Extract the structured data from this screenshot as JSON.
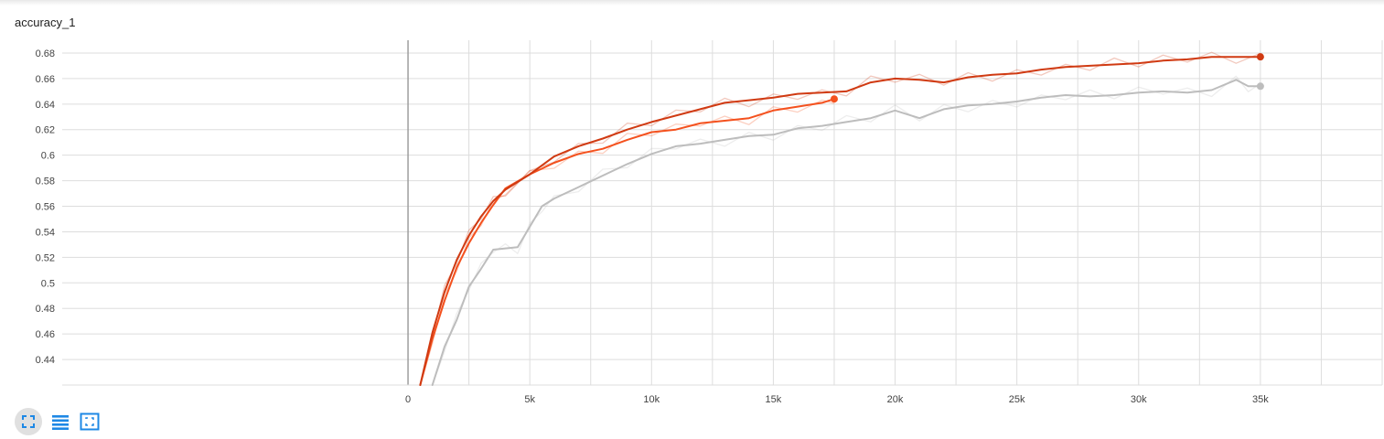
{
  "card": {
    "title": "accuracy_1"
  },
  "toolbar": {
    "items": [
      {
        "name": "fullscreen-icon",
        "active": true
      },
      {
        "name": "data-table-icon",
        "active": false
      },
      {
        "name": "fit-domain-icon",
        "active": false
      }
    ]
  },
  "colors": {
    "accent": "#1e88e5",
    "grid": "#dddddd",
    "axis": "#9e9e9e"
  },
  "chart_data": {
    "type": "line",
    "title": "accuracy_1",
    "xlabel": "",
    "ylabel": "",
    "xlim": [
      -14200,
      40000
    ],
    "ylim": [
      0.42,
      0.69
    ],
    "x_ticks": [
      0,
      5000,
      10000,
      15000,
      20000,
      25000,
      30000,
      35000
    ],
    "x_tick_labels": [
      "0",
      "5k",
      "10k",
      "15k",
      "20k",
      "25k",
      "30k",
      "35k"
    ],
    "y_ticks": [
      0.44,
      0.46,
      0.48,
      0.5,
      0.52,
      0.54,
      0.56,
      0.58,
      0.6,
      0.62,
      0.64,
      0.66,
      0.68
    ],
    "y_tick_labels": [
      "0.44",
      "0.46",
      "0.48",
      "0.5",
      "0.52",
      "0.54",
      "0.56",
      "0.58",
      "0.6",
      "0.62",
      "0.64",
      "0.66",
      "0.68"
    ],
    "grid": true,
    "legend": "none",
    "series": [
      {
        "color": "#bdbdbd",
        "end_marker": true,
        "x": [
          1000,
          1500,
          2000,
          2500,
          3000,
          3500,
          4000,
          4500,
          5000,
          5500,
          6000,
          7000,
          8000,
          9000,
          10000,
          11000,
          12000,
          13000,
          14000,
          15000,
          16000,
          17000,
          18000,
          19000,
          20000,
          21000,
          22000,
          23000,
          24000,
          25000,
          26000,
          27000,
          28000,
          29000,
          30000,
          31000,
          32000,
          33000,
          34000,
          34500,
          35000
        ],
        "values": [
          0.42,
          0.45,
          0.471,
          0.497,
          0.511,
          0.526,
          0.527,
          0.528,
          0.544,
          0.56,
          0.566,
          0.575,
          0.584,
          0.593,
          0.601,
          0.607,
          0.609,
          0.612,
          0.615,
          0.616,
          0.621,
          0.623,
          0.626,
          0.629,
          0.635,
          0.629,
          0.636,
          0.639,
          0.64,
          0.642,
          0.645,
          0.647,
          0.646,
          0.647,
          0.649,
          0.65,
          0.649,
          0.651,
          0.659,
          0.654,
          0.654
        ]
      },
      {
        "color": "#f4511e",
        "end_marker": true,
        "x": [
          500,
          1000,
          1500,
          2000,
          2500,
          3000,
          3500,
          4000,
          5000,
          6000,
          7000,
          8000,
          9000,
          10000,
          11000,
          12000,
          13000,
          14000,
          15000,
          16000,
          17000,
          17500
        ],
        "values": [
          0.42,
          0.456,
          0.486,
          0.512,
          0.531,
          0.547,
          0.561,
          0.574,
          0.585,
          0.594,
          0.601,
          0.605,
          0.612,
          0.618,
          0.62,
          0.625,
          0.627,
          0.629,
          0.635,
          0.638,
          0.641,
          0.644
        ]
      },
      {
        "color": "#d03a12",
        "end_marker": true,
        "x": [
          500,
          1000,
          1500,
          2000,
          2500,
          3000,
          3500,
          4000,
          5000,
          6000,
          7000,
          8000,
          9000,
          10000,
          11000,
          12000,
          13000,
          14000,
          15000,
          16000,
          17000,
          18000,
          19000,
          20000,
          21000,
          22000,
          23000,
          24000,
          25000,
          26000,
          27000,
          28000,
          29000,
          30000,
          31000,
          32000,
          33000,
          34000,
          35000
        ],
        "values": [
          0.42,
          0.461,
          0.493,
          0.518,
          0.537,
          0.552,
          0.564,
          0.573,
          0.585,
          0.599,
          0.607,
          0.613,
          0.62,
          0.626,
          0.631,
          0.636,
          0.641,
          0.643,
          0.645,
          0.648,
          0.649,
          0.65,
          0.657,
          0.66,
          0.659,
          0.657,
          0.661,
          0.663,
          0.664,
          0.667,
          0.669,
          0.67,
          0.671,
          0.672,
          0.674,
          0.675,
          0.677,
          0.677,
          0.677
        ]
      }
    ]
  }
}
